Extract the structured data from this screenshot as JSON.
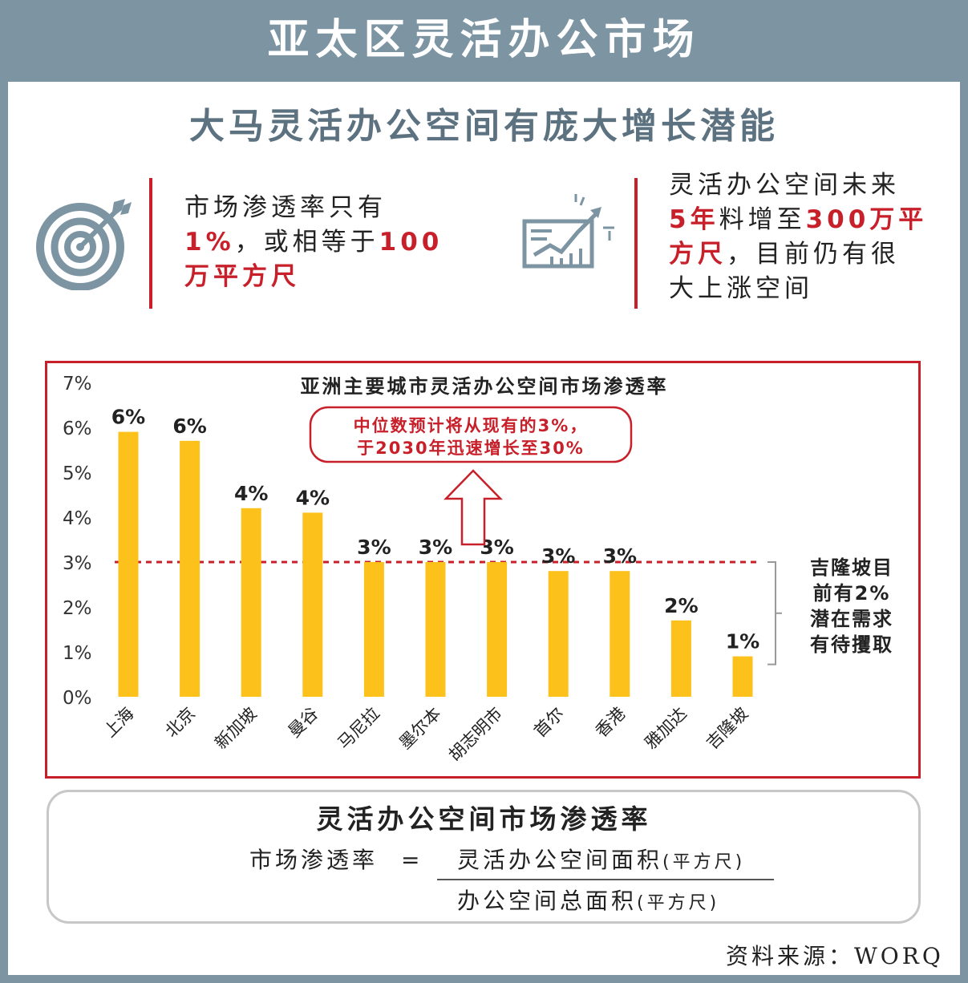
{
  "header": {
    "title": "亚太区灵活办公市场"
  },
  "headline": "大马灵活办公空间有庞大增长潜能",
  "info_left": {
    "icon": "target-icon",
    "line1": "市场渗透率只有",
    "line2_red": "1%",
    "line2_rest": "，或相等于",
    "line2_red2": "100",
    "line3_red": "万平方尺"
  },
  "info_right": {
    "icon": "growth-chart-icon",
    "line1": "灵活办公空间未来",
    "line2_red": "5年",
    "line2_mid": "料增至",
    "line2_red2": "300万平",
    "line3_red": "方尺",
    "line3_rest": "，目前仍有很",
    "line4": "大上涨空间"
  },
  "chart_data": {
    "type": "bar",
    "title": "亚洲主要城市灵活办公空间市场渗透率",
    "categories": [
      "上海",
      "北京",
      "新加坡",
      "曼谷",
      "马尼拉",
      "墨尔本",
      "胡志明市",
      "首尔",
      "香港",
      "雅加达",
      "吉隆坡"
    ],
    "values": [
      5.9,
      5.7,
      4.2,
      4.1,
      3.0,
      3.0,
      3.0,
      2.8,
      2.8,
      1.7,
      0.9
    ],
    "data_labels": [
      "6%",
      "6%",
      "4%",
      "4%",
      "3%",
      "3%",
      "3%",
      "3%",
      "3%",
      "2%",
      "1%"
    ],
    "yticks": [
      "0%",
      "1%",
      "2%",
      "3%",
      "4%",
      "5%",
      "6%",
      "7%"
    ],
    "ylim": [
      0,
      7
    ],
    "reference_line": 3,
    "annotation_line1": "中位数预计将从现有的3%，",
    "annotation_line2": "于2030年迅速增长至30%",
    "side_note": [
      "吉隆坡目",
      "前有2%",
      "潜在需求",
      "有待攫取"
    ],
    "bar_color": "#fcc11a",
    "accent_color": "#c8202a"
  },
  "formula": {
    "title": "灵活办公空间市场渗透率",
    "lhs": "市场渗透率",
    "eq": "=",
    "numerator": "灵活办公空间面积",
    "numerator_unit": "(平方尺)",
    "denominator": "办公空间总面积",
    "denominator_unit": "(平方尺)"
  },
  "source": "资料来源：WORQ"
}
